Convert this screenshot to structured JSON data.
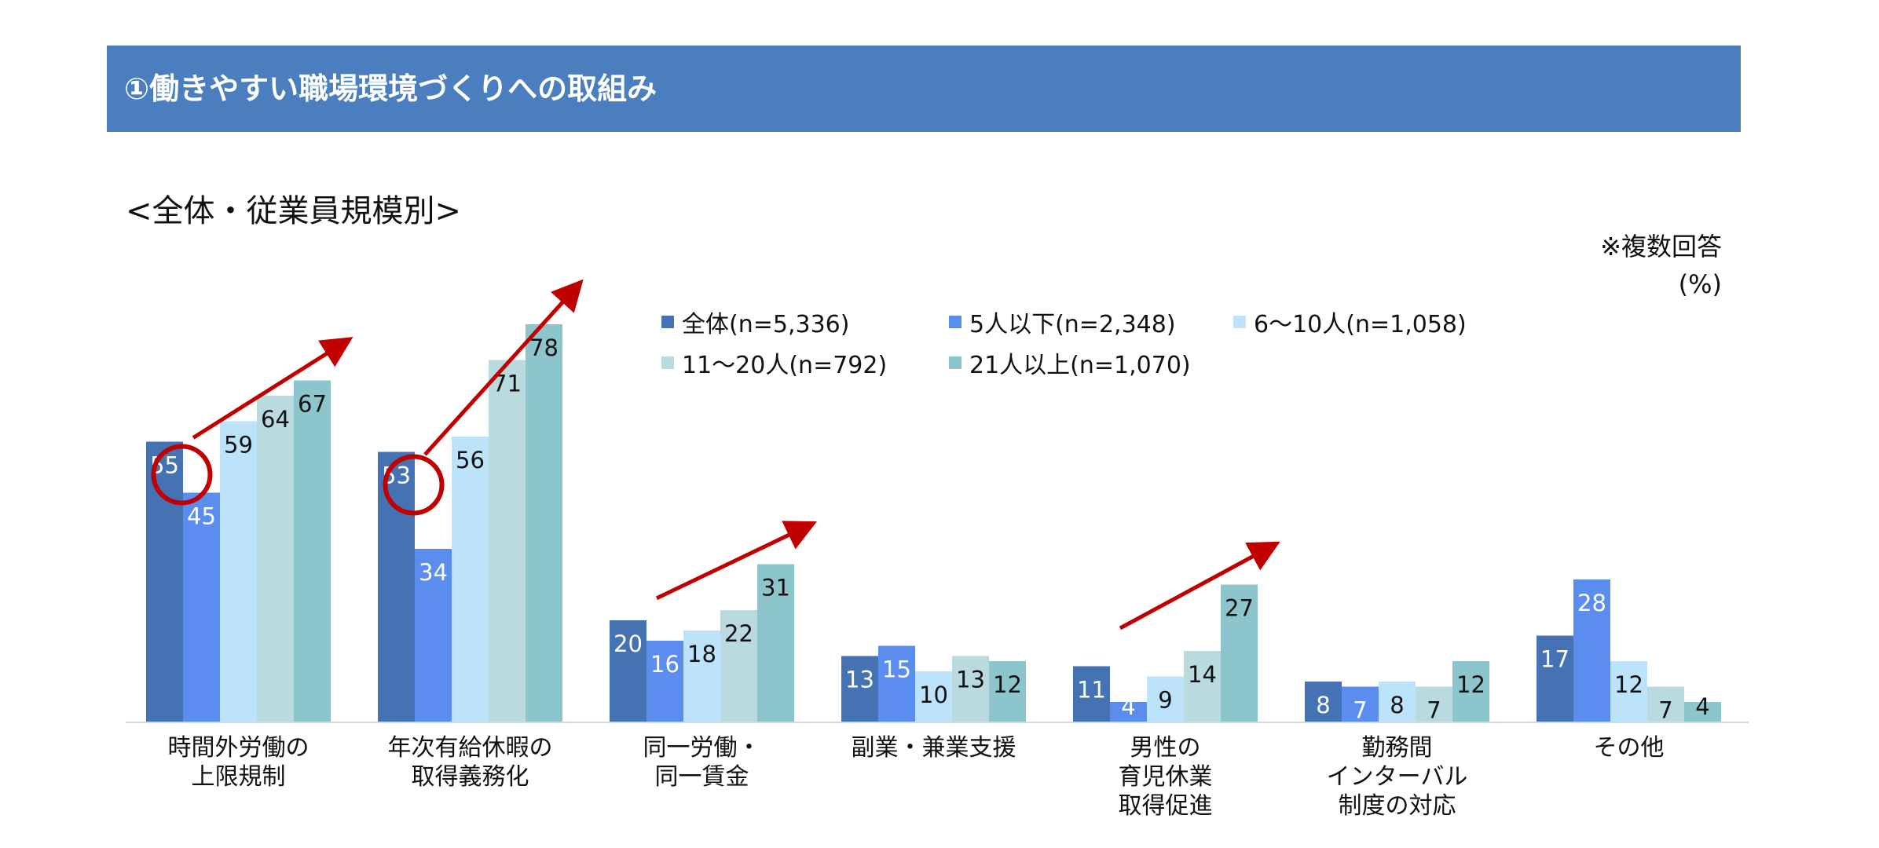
{
  "header": {
    "title": "①働きやすい職場環境づくりへの取組み"
  },
  "subtitle": "<全体・従業員規模別>",
  "note": {
    "line1": "※複数回答",
    "line2": "(%)"
  },
  "chart_data": {
    "type": "bar",
    "categories": [
      [
        "時間外労働の",
        "上限規制"
      ],
      [
        "年次有給休暇の",
        "取得義務化"
      ],
      [
        "同一労働・",
        "同一賃金"
      ],
      [
        "副業・兼業支援"
      ],
      [
        "男性の",
        "育児休業",
        "取得促進"
      ],
      [
        "勤務間",
        "インターバル",
        "制度の対応"
      ],
      [
        "その他"
      ]
    ],
    "series": [
      {
        "name": "全体(n=5,336)",
        "color": "#4472b3",
        "label_color": "#ffffff",
        "values": [
          55,
          53,
          20,
          13,
          11,
          8,
          17
        ]
      },
      {
        "name": "5人以下(n=2,348)",
        "color": "#5b8def",
        "label_color": "#ffffff",
        "values": [
          45,
          34,
          16,
          15,
          4,
          7,
          28
        ]
      },
      {
        "name": "6～10人(n=1,058)",
        "color": "#bde3fb",
        "label_color": "#111111",
        "values": [
          59,
          56,
          18,
          10,
          9,
          8,
          12
        ]
      },
      {
        "name": "11～20人(n=792)",
        "color": "#b9dbe0",
        "label_color": "#111111",
        "values": [
          64,
          71,
          22,
          13,
          14,
          7,
          7
        ]
      },
      {
        "name": "21人以上(n=1,070)",
        "color": "#8cc6cc",
        "label_color": "#111111",
        "values": [
          67,
          78,
          31,
          12,
          27,
          12,
          4
        ]
      }
    ],
    "ylim": [
      0,
      80
    ],
    "grid": false,
    "legend_position": "top-center",
    "annotations": {
      "highlight_circles": [
        {
          "category": 0,
          "series": 0
        },
        {
          "category": 1,
          "series": 0
        }
      ],
      "trend_arrows": [
        0,
        1,
        2,
        4
      ],
      "annotation_color": "#c00000"
    }
  }
}
